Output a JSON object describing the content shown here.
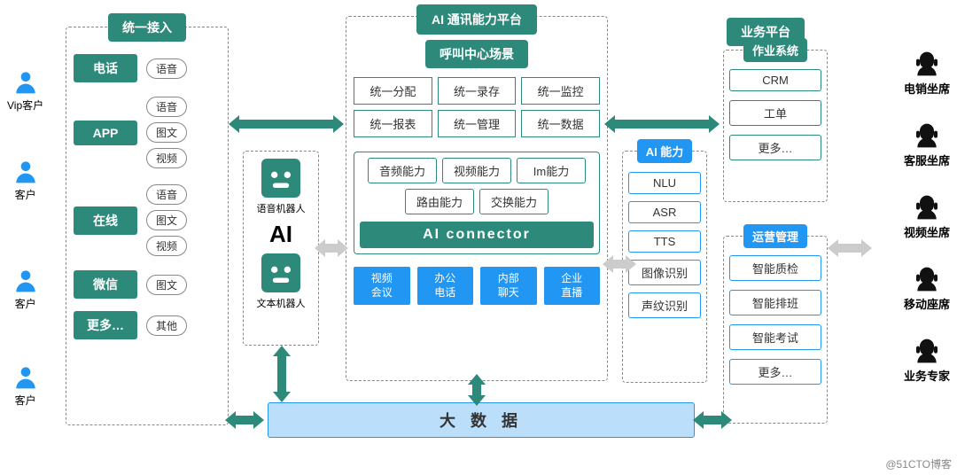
{
  "colors": {
    "teal": "#2d8a7a",
    "teal_light": "#8fd3c7",
    "blue": "#2196f3",
    "blue_light": "#bbdefb",
    "gray_border": "#888888",
    "text": "#333333"
  },
  "left": {
    "users": [
      "Vip客户",
      "客户",
      "客户",
      "客户"
    ],
    "title": "统一接入",
    "channels": [
      {
        "name": "电话",
        "tags": [
          "语音"
        ]
      },
      {
        "name": "APP",
        "tags": [
          "语音",
          "图文",
          "视频"
        ]
      },
      {
        "name": "在线",
        "tags": [
          "语音",
          "图文",
          "视频"
        ]
      },
      {
        "name": "微信",
        "tags": [
          "图文"
        ]
      },
      {
        "name": "更多…",
        "tags": [
          "其他"
        ]
      }
    ]
  },
  "ai_box": {
    "robots": [
      "语音机器人",
      "文本机器人"
    ],
    "label": "AI"
  },
  "center": {
    "title1": "AI 通讯能力平台",
    "title2": "呼叫中心场景",
    "grid": [
      [
        "统一分配",
        "统一录存",
        "统一监控"
      ],
      [
        "统一报表",
        "统一管理",
        "统一数据"
      ]
    ],
    "caps_title_items": [
      "音频能力",
      "视频能力",
      "Im能力",
      "路由能力",
      "交换能力"
    ],
    "connector": "AI   connector",
    "blue_items": [
      "视频会议",
      "办公电话",
      "内部聊天",
      "企业直播"
    ]
  },
  "ai_ability": {
    "title": "AI 能力",
    "items": [
      "NLU",
      "ASR",
      "TTS",
      "图像识别",
      "声纹识别"
    ]
  },
  "right": {
    "title": "业务平台",
    "ops_title": "作业系统",
    "ops_items": [
      "CRM",
      "工单",
      "更多…"
    ],
    "mgmt_title": "运营管理",
    "mgmt_items": [
      "智能质检",
      "智能排班",
      "智能考试",
      "更多…"
    ]
  },
  "agents": [
    "电销坐席",
    "客服坐席",
    "视频坐席",
    "移动座席",
    "业务专家"
  ],
  "bottom": "大    数    据",
  "watermark": "@51CTO博客"
}
